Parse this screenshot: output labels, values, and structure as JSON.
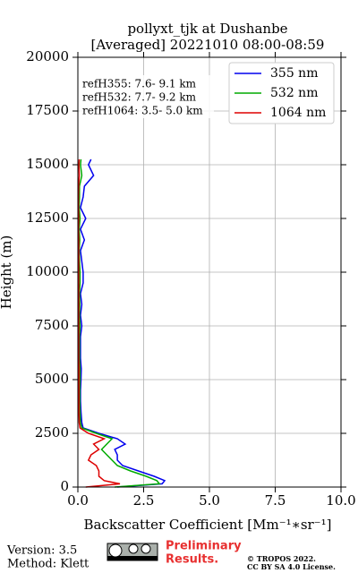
{
  "chart_data": {
    "type": "line",
    "title": "pollyxt_tjk at Dushanbe",
    "subtitle": "[Averaged] 20221010 08:00-08:59",
    "xlabel": "Backscatter Coefficient [Mm⁻¹∗sr⁻¹]",
    "ylabel": "Height (m)",
    "xlim": [
      0,
      10
    ],
    "ylim": [
      0,
      20000
    ],
    "xticks": [
      {
        "value": 0,
        "label": "0.0"
      },
      2.5,
      {
        "value": 5,
        "label": "5.0"
      },
      7.5,
      {
        "value": 10,
        "label": "10.0"
      }
    ],
    "yticks": [
      0,
      2500,
      5000,
      7500,
      10000,
      12500,
      15000,
      17500,
      20000
    ],
    "grid": true,
    "legend": "upper right",
    "y": [
      0,
      150,
      300,
      500,
      750,
      1000,
      1250,
      1500,
      1750,
      2000,
      2250,
      2500,
      2750,
      3000,
      3500,
      4000,
      4500,
      5000,
      5500,
      6000,
      6500,
      7000,
      7500,
      8000,
      8500,
      9000,
      9500,
      10000,
      10500,
      11000,
      11500,
      12000,
      12500,
      13000,
      13500,
      14000,
      14500,
      15000,
      15250
    ],
    "series": [
      {
        "name": "355 nm",
        "color": "#0000ee",
        "values": [
          1.5,
          3.2,
          3.3,
          2.9,
          2.3,
          1.7,
          1.5,
          1.5,
          1.4,
          1.8,
          1.5,
          0.8,
          0.2,
          0.15,
          0.12,
          0.1,
          0.1,
          0.12,
          0.13,
          0.1,
          0.1,
          0.1,
          0.15,
          0.1,
          0.15,
          0.1,
          0.2,
          0.2,
          0.15,
          0.1,
          0.25,
          0.1,
          0.3,
          0.1,
          0.2,
          0.25,
          0.6,
          0.4,
          0.5
        ]
      },
      {
        "name": "532 nm",
        "color": "#00aa00",
        "values": [
          1.4,
          3.1,
          3.0,
          2.6,
          2.0,
          1.5,
          1.3,
          1.1,
          0.9,
          1.1,
          1.3,
          0.7,
          0.15,
          0.1,
          0.08,
          0.07,
          0.07,
          0.08,
          0.08,
          0.06,
          0.06,
          0.06,
          0.08,
          0.06,
          0.07,
          0.06,
          0.08,
          0.08,
          0.06,
          0.05,
          0.07,
          0.05,
          0.08,
          0.05,
          0.06,
          0.06,
          0.15,
          0.1,
          0.12
        ]
      },
      {
        "name": "1064 nm",
        "color": "#dd0000",
        "values": [
          0.3,
          1.6,
          1.0,
          0.8,
          0.8,
          0.7,
          0.4,
          0.5,
          0.8,
          0.6,
          1.0,
          0.4,
          0.08,
          0.05,
          0.04,
          0.04,
          0.04,
          0.04,
          0.04,
          0.03,
          0.03,
          0.03,
          0.03,
          0.03,
          0.03,
          0.03,
          0.03,
          0.03,
          0.03,
          0.03,
          0.03,
          0.02,
          0.03,
          0.02,
          0.02,
          0.03,
          0.05,
          0.04,
          0.05
        ]
      }
    ],
    "annotations": [
      "refH355:  7.6- 9.1 km",
      "refH532:  7.7- 9.2 km",
      "refH1064:  3.5- 5.0 km"
    ],
    "footer": {
      "version": "Version: 3.5",
      "method": "Method: Klett",
      "preliminary": [
        "Preliminary",
        "Results."
      ],
      "copyright": [
        "© TROPOS 2022.",
        "CC BY SA 4.0 License."
      ]
    }
  }
}
